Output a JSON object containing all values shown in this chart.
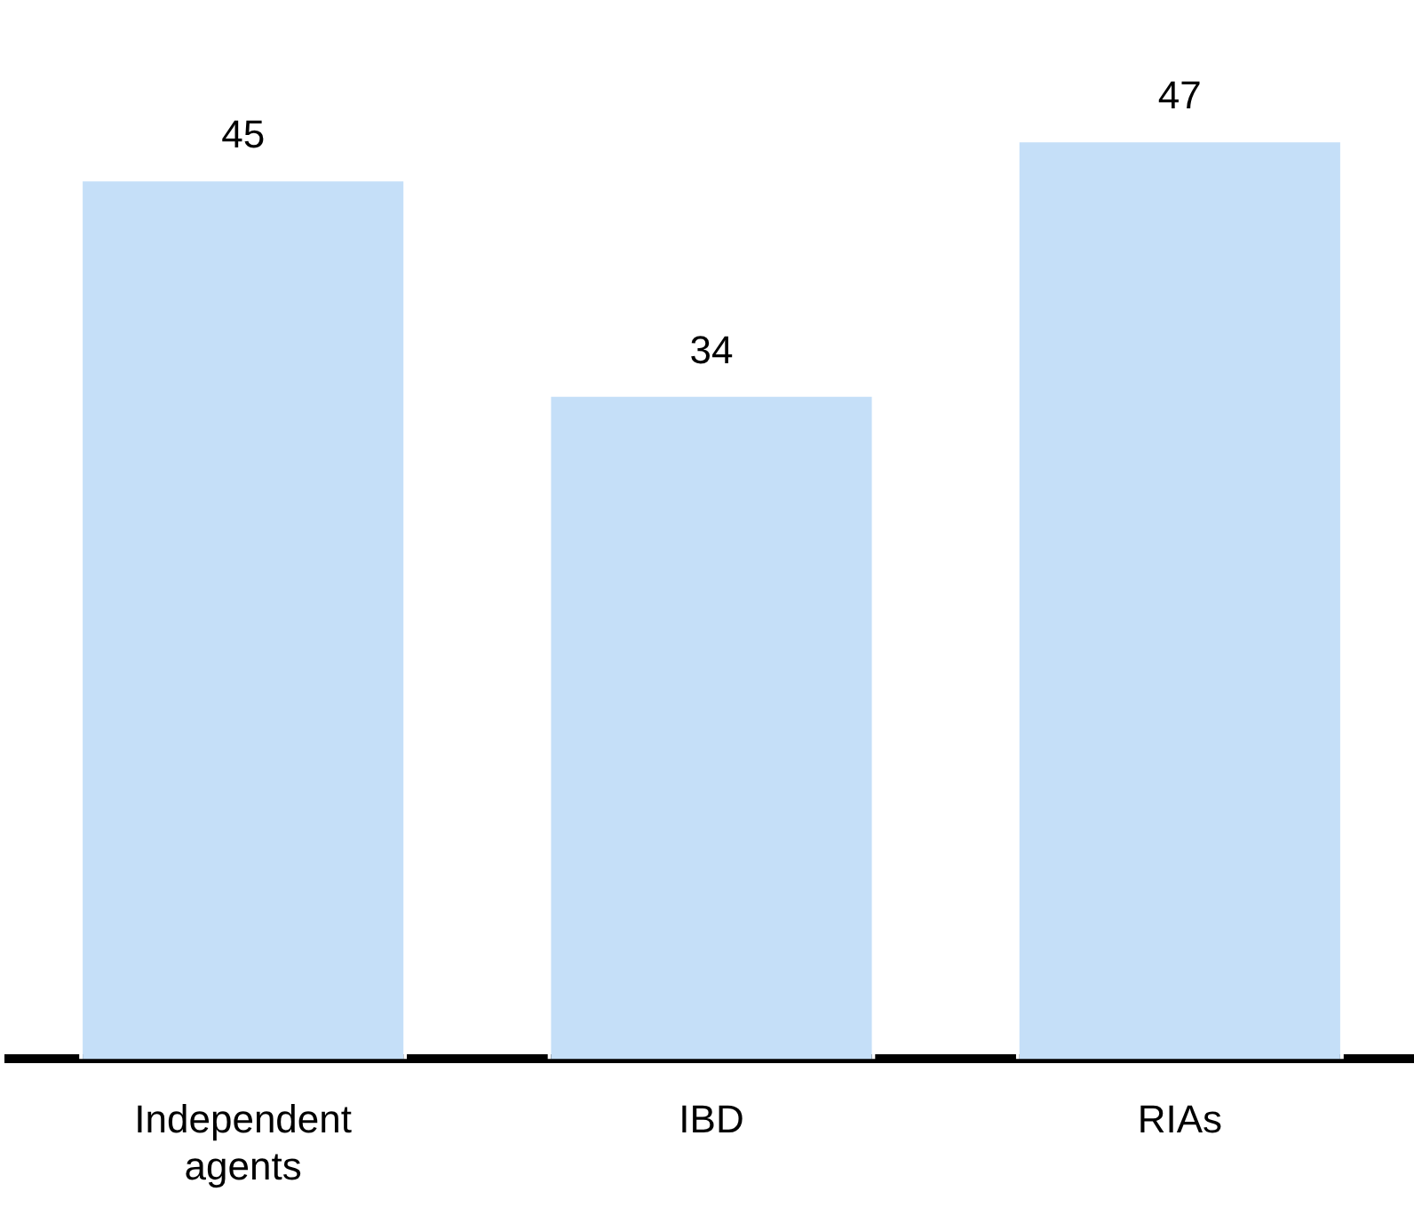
{
  "chart_data": {
    "type": "bar",
    "categories": [
      "Independent agents",
      "IBD",
      "RIAs"
    ],
    "values": [
      45,
      34,
      47
    ],
    "color": "#c5dff8",
    "data_labels": true,
    "grid": false
  }
}
